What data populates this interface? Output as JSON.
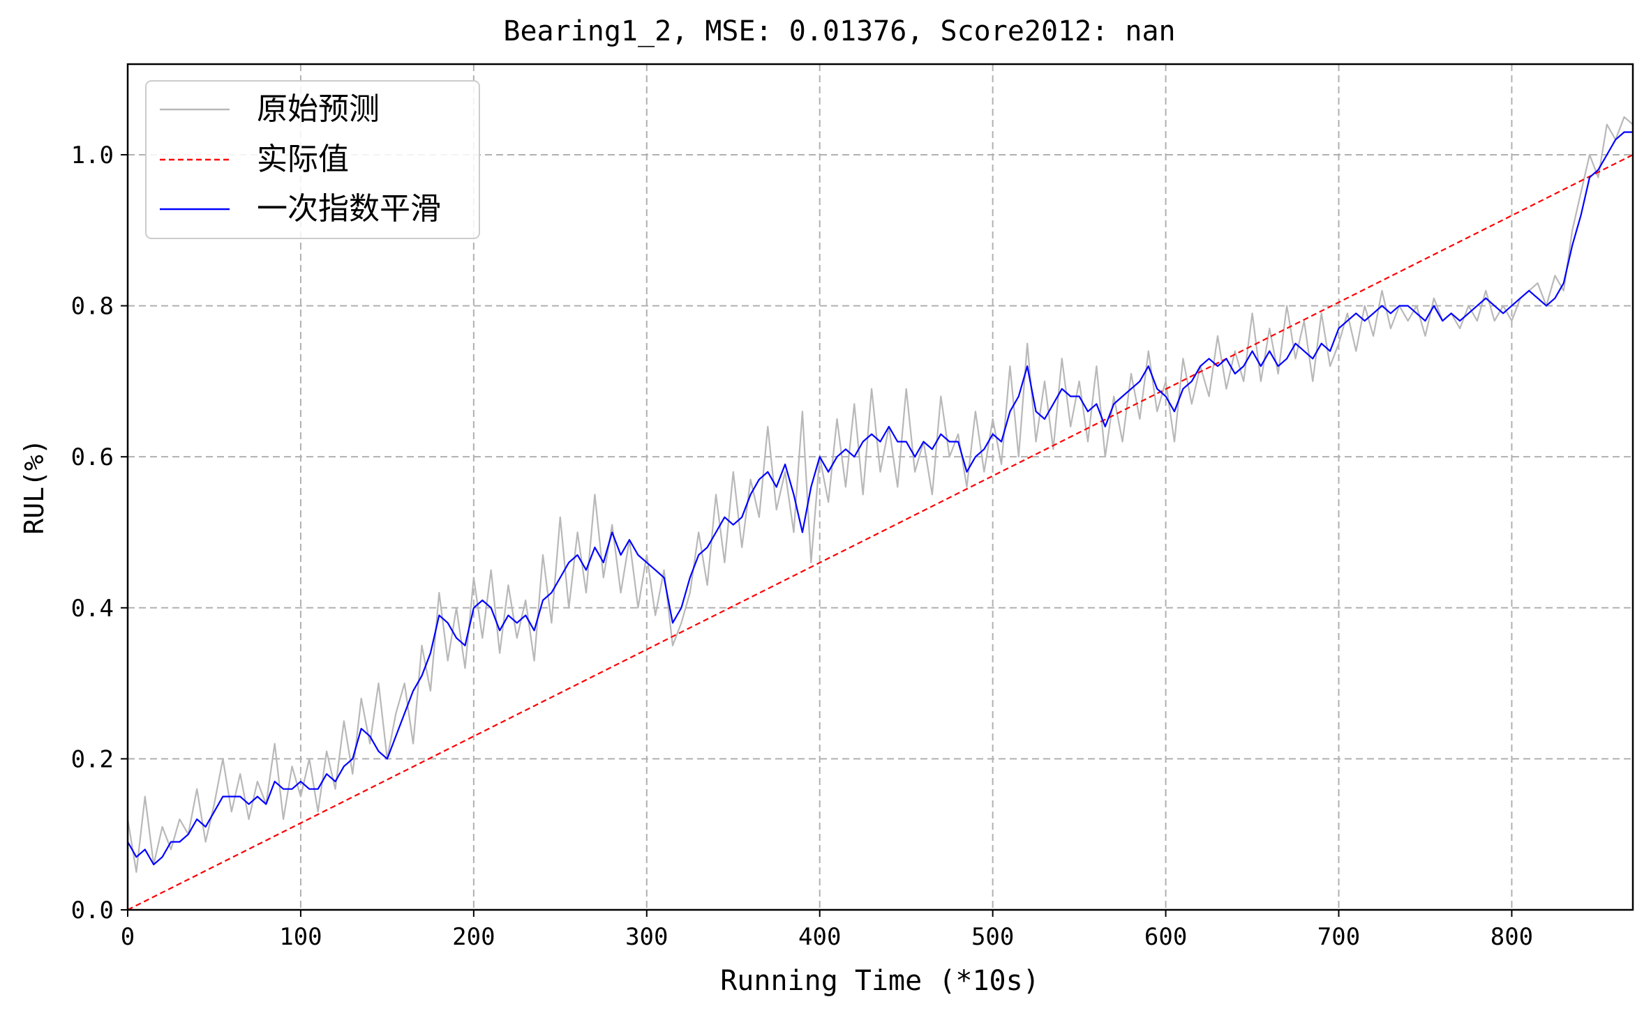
{
  "chart_data": {
    "type": "line",
    "title": "Bearing1_2, MSE: 0.01376, Score2012: nan",
    "xlabel": "Running Time (*10s)",
    "ylabel": "RUL(%)",
    "xlim": [
      0,
      870
    ],
    "ylim": [
      0.0,
      1.12
    ],
    "xticks": [
      0,
      100,
      200,
      300,
      400,
      500,
      600,
      700,
      800
    ],
    "xtick_labels": [
      "0",
      "100",
      "200",
      "300",
      "400",
      "500",
      "600",
      "700",
      "800"
    ],
    "yticks": [
      0.0,
      0.2,
      0.4,
      0.6,
      0.8,
      1.0
    ],
    "ytick_labels": [
      "0.0",
      "0.2",
      "0.4",
      "0.6",
      "0.8",
      "1.0"
    ],
    "grid": true,
    "legend_position": "top-left",
    "series": [
      {
        "name": "原始预测",
        "color": "#b8b8b8",
        "style": "solid",
        "x": [
          0,
          5,
          10,
          15,
          20,
          25,
          30,
          35,
          40,
          45,
          50,
          55,
          60,
          65,
          70,
          75,
          80,
          85,
          90,
          95,
          100,
          105,
          110,
          115,
          120,
          125,
          130,
          135,
          140,
          145,
          150,
          155,
          160,
          165,
          170,
          175,
          180,
          185,
          190,
          195,
          200,
          205,
          210,
          215,
          220,
          225,
          230,
          235,
          240,
          245,
          250,
          255,
          260,
          265,
          270,
          275,
          280,
          285,
          290,
          295,
          300,
          305,
          310,
          315,
          320,
          325,
          330,
          335,
          340,
          345,
          350,
          355,
          360,
          365,
          370,
          375,
          380,
          385,
          390,
          395,
          400,
          405,
          410,
          415,
          420,
          425,
          430,
          435,
          440,
          445,
          450,
          455,
          460,
          465,
          470,
          475,
          480,
          485,
          490,
          495,
          500,
          505,
          510,
          515,
          520,
          525,
          530,
          535,
          540,
          545,
          550,
          555,
          560,
          565,
          570,
          575,
          580,
          585,
          590,
          595,
          600,
          605,
          610,
          615,
          620,
          625,
          630,
          635,
          640,
          645,
          650,
          655,
          660,
          665,
          670,
          675,
          680,
          685,
          690,
          695,
          700,
          705,
          710,
          715,
          720,
          725,
          730,
          735,
          740,
          745,
          750,
          755,
          760,
          765,
          770,
          775,
          780,
          785,
          790,
          795,
          800,
          805,
          810,
          815,
          820,
          825,
          830,
          835,
          840,
          845,
          850,
          855,
          860,
          865,
          870
        ],
        "y": [
          0.12,
          0.05,
          0.15,
          0.06,
          0.11,
          0.08,
          0.12,
          0.1,
          0.16,
          0.09,
          0.14,
          0.2,
          0.13,
          0.18,
          0.12,
          0.17,
          0.14,
          0.22,
          0.12,
          0.19,
          0.15,
          0.2,
          0.13,
          0.21,
          0.16,
          0.25,
          0.18,
          0.28,
          0.22,
          0.3,
          0.2,
          0.26,
          0.3,
          0.22,
          0.35,
          0.29,
          0.42,
          0.33,
          0.4,
          0.32,
          0.44,
          0.36,
          0.45,
          0.34,
          0.43,
          0.36,
          0.41,
          0.33,
          0.47,
          0.38,
          0.52,
          0.4,
          0.5,
          0.42,
          0.55,
          0.44,
          0.51,
          0.42,
          0.49,
          0.4,
          0.47,
          0.39,
          0.45,
          0.35,
          0.38,
          0.42,
          0.5,
          0.43,
          0.55,
          0.46,
          0.58,
          0.48,
          0.57,
          0.52,
          0.64,
          0.53,
          0.58,
          0.5,
          0.66,
          0.46,
          0.6,
          0.54,
          0.65,
          0.56,
          0.67,
          0.55,
          0.69,
          0.58,
          0.64,
          0.56,
          0.69,
          0.58,
          0.62,
          0.55,
          0.68,
          0.6,
          0.63,
          0.56,
          0.66,
          0.58,
          0.65,
          0.59,
          0.72,
          0.6,
          0.75,
          0.62,
          0.7,
          0.61,
          0.73,
          0.64,
          0.7,
          0.62,
          0.72,
          0.6,
          0.68,
          0.62,
          0.71,
          0.65,
          0.74,
          0.66,
          0.7,
          0.62,
          0.73,
          0.67,
          0.72,
          0.68,
          0.76,
          0.69,
          0.74,
          0.7,
          0.79,
          0.7,
          0.77,
          0.71,
          0.8,
          0.73,
          0.78,
          0.7,
          0.79,
          0.72,
          0.75,
          0.79,
          0.74,
          0.8,
          0.76,
          0.82,
          0.77,
          0.8,
          0.78,
          0.8,
          0.76,
          0.81,
          0.78,
          0.79,
          0.77,
          0.8,
          0.78,
          0.82,
          0.78,
          0.8,
          0.78,
          0.81,
          0.82,
          0.83,
          0.8,
          0.84,
          0.82,
          0.9,
          0.95,
          1.0,
          0.97,
          1.04,
          1.02,
          1.05,
          1.04
        ]
      },
      {
        "name": "实际值",
        "color": "#ff0000",
        "style": "dashed",
        "x": [
          0,
          870
        ],
        "y": [
          0.0,
          1.0
        ]
      },
      {
        "name": "一次指数平滑",
        "color": "#0000ff",
        "style": "solid",
        "x": [
          0,
          5,
          10,
          15,
          20,
          25,
          30,
          35,
          40,
          45,
          50,
          55,
          60,
          65,
          70,
          75,
          80,
          85,
          90,
          95,
          100,
          105,
          110,
          115,
          120,
          125,
          130,
          135,
          140,
          145,
          150,
          155,
          160,
          165,
          170,
          175,
          180,
          185,
          190,
          195,
          200,
          205,
          210,
          215,
          220,
          225,
          230,
          235,
          240,
          245,
          250,
          255,
          260,
          265,
          270,
          275,
          280,
          285,
          290,
          295,
          300,
          305,
          310,
          315,
          320,
          325,
          330,
          335,
          340,
          345,
          350,
          355,
          360,
          365,
          370,
          375,
          380,
          385,
          390,
          395,
          400,
          405,
          410,
          415,
          420,
          425,
          430,
          435,
          440,
          445,
          450,
          455,
          460,
          465,
          470,
          475,
          480,
          485,
          490,
          495,
          500,
          505,
          510,
          515,
          520,
          525,
          530,
          535,
          540,
          545,
          550,
          555,
          560,
          565,
          570,
          575,
          580,
          585,
          590,
          595,
          600,
          605,
          610,
          615,
          620,
          625,
          630,
          635,
          640,
          645,
          650,
          655,
          660,
          665,
          670,
          675,
          680,
          685,
          690,
          695,
          700,
          705,
          710,
          715,
          720,
          725,
          730,
          735,
          740,
          745,
          750,
          755,
          760,
          765,
          770,
          775,
          780,
          785,
          790,
          795,
          800,
          805,
          810,
          815,
          820,
          825,
          830,
          835,
          840,
          845,
          850,
          855,
          860,
          865,
          870
        ],
        "y": [
          0.09,
          0.07,
          0.08,
          0.06,
          0.07,
          0.09,
          0.09,
          0.1,
          0.12,
          0.11,
          0.13,
          0.15,
          0.15,
          0.15,
          0.14,
          0.15,
          0.14,
          0.17,
          0.16,
          0.16,
          0.17,
          0.16,
          0.16,
          0.18,
          0.17,
          0.19,
          0.2,
          0.24,
          0.23,
          0.21,
          0.2,
          0.23,
          0.26,
          0.29,
          0.31,
          0.34,
          0.39,
          0.38,
          0.36,
          0.35,
          0.4,
          0.41,
          0.4,
          0.37,
          0.39,
          0.38,
          0.39,
          0.37,
          0.41,
          0.42,
          0.44,
          0.46,
          0.47,
          0.45,
          0.48,
          0.46,
          0.5,
          0.47,
          0.49,
          0.47,
          0.46,
          0.45,
          0.44,
          0.38,
          0.4,
          0.44,
          0.47,
          0.48,
          0.5,
          0.52,
          0.51,
          0.52,
          0.55,
          0.57,
          0.58,
          0.56,
          0.59,
          0.55,
          0.5,
          0.56,
          0.6,
          0.58,
          0.6,
          0.61,
          0.6,
          0.62,
          0.63,
          0.62,
          0.64,
          0.62,
          0.62,
          0.6,
          0.62,
          0.61,
          0.63,
          0.62,
          0.62,
          0.58,
          0.6,
          0.61,
          0.63,
          0.62,
          0.66,
          0.68,
          0.72,
          0.66,
          0.65,
          0.67,
          0.69,
          0.68,
          0.68,
          0.66,
          0.67,
          0.64,
          0.67,
          0.68,
          0.69,
          0.7,
          0.72,
          0.69,
          0.68,
          0.66,
          0.69,
          0.7,
          0.72,
          0.73,
          0.72,
          0.73,
          0.71,
          0.72,
          0.74,
          0.72,
          0.74,
          0.72,
          0.73,
          0.75,
          0.74,
          0.73,
          0.75,
          0.74,
          0.77,
          0.78,
          0.79,
          0.78,
          0.79,
          0.8,
          0.79,
          0.8,
          0.8,
          0.79,
          0.78,
          0.8,
          0.78,
          0.79,
          0.78,
          0.79,
          0.8,
          0.81,
          0.8,
          0.79,
          0.8,
          0.81,
          0.82,
          0.81,
          0.8,
          0.81,
          0.83,
          0.88,
          0.92,
          0.97,
          0.98,
          1.0,
          1.02,
          1.03,
          1.03
        ]
      }
    ]
  }
}
